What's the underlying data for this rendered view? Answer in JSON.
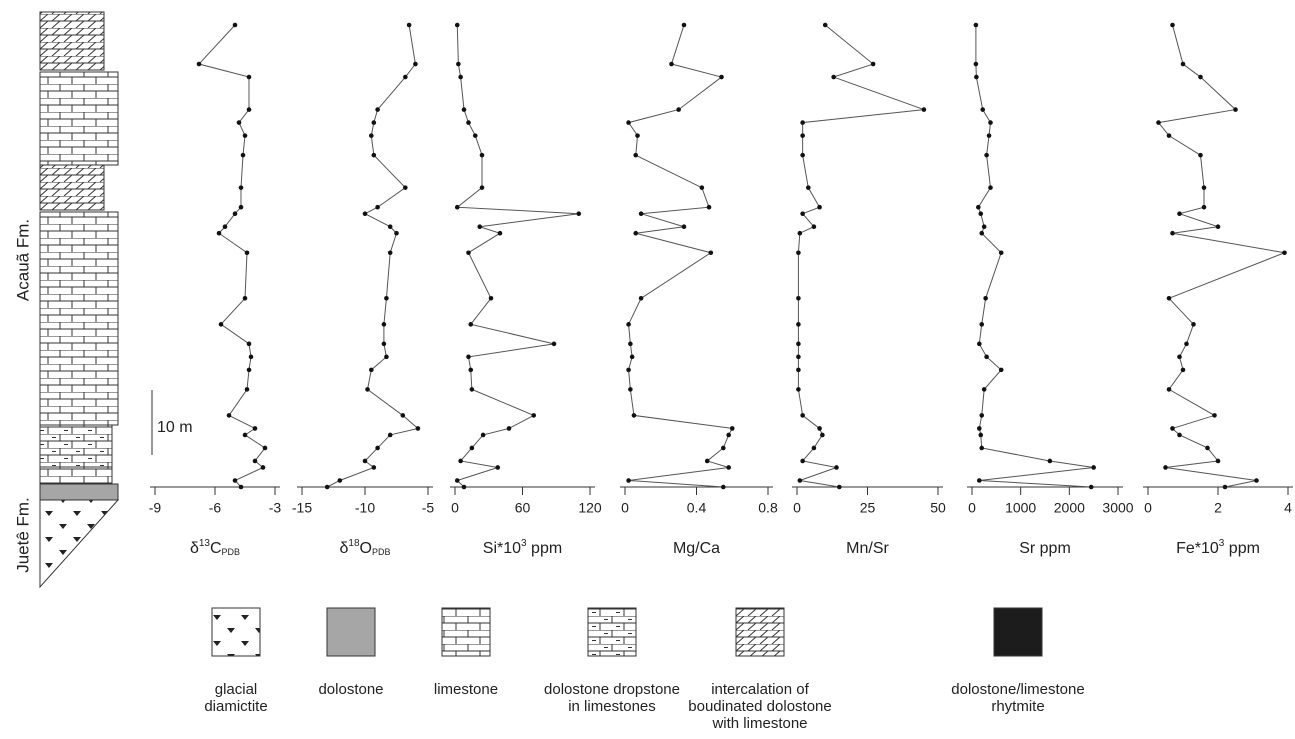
{
  "chart_data": [
    {
      "type": "line",
      "xlabel": [
        "δ",
        "13",
        "C",
        "PDB"
      ],
      "xlim": [
        -9,
        -3
      ],
      "xticks": [
        -9,
        -6,
        -3
      ],
      "ylim": [
        0,
        71
      ],
      "y": [
        71,
        65,
        63,
        58,
        56,
        54,
        51,
        46,
        43,
        42,
        40,
        39,
        36,
        29,
        25,
        22,
        20,
        18,
        15,
        11,
        9,
        8,
        6,
        4,
        3,
        1,
        0
      ],
      "values": [
        -5,
        -6.8,
        -4.3,
        -4.3,
        -4.8,
        -4.5,
        -4.6,
        -4.7,
        -4.7,
        -5.0,
        -5.5,
        -5.8,
        -4.4,
        -4.5,
        -5.7,
        -4.3,
        -4.2,
        -4.3,
        -4.4,
        -5.3,
        -4.0,
        -4.5,
        -3.5,
        -4.0,
        -3.6,
        -5.0,
        -4.7
      ]
    },
    {
      "type": "line",
      "xlabel": [
        "δ",
        "18",
        "O",
        "PDB"
      ],
      "xlim": [
        -15,
        -5
      ],
      "xticks": [
        -15,
        -10,
        -5
      ],
      "ylim": [
        0,
        71
      ],
      "y": [
        71,
        65,
        63,
        58,
        56,
        54,
        51,
        46,
        43,
        42,
        40,
        39,
        36,
        29,
        25,
        22,
        20,
        18,
        15,
        11,
        9,
        8,
        6,
        4,
        3,
        1,
        0
      ],
      "values": [
        -6.5,
        -6.0,
        -6.8,
        -9,
        -9.3,
        -9.5,
        -9.3,
        -6.8,
        -9.0,
        -10.0,
        -8.0,
        -7.5,
        -8.0,
        -8.3,
        -8.5,
        -8.5,
        -8.3,
        -9.5,
        -9.8,
        -7.0,
        -5.8,
        -8.0,
        -9.0,
        -10.0,
        -9.3,
        -12.0,
        -13.0
      ]
    },
    {
      "type": "line",
      "xlabel": [
        "Si*10",
        "3",
        " ppm"
      ],
      "xlim": [
        0,
        120
      ],
      "xticks": [
        0,
        60,
        120
      ],
      "ylim": [
        0,
        71
      ],
      "y": [
        71,
        65,
        63,
        58,
        56,
        54,
        51,
        46,
        43,
        42,
        40,
        39,
        36,
        29,
        25,
        22,
        20,
        18,
        15,
        11,
        9,
        8,
        6,
        4,
        3,
        1,
        0
      ],
      "values": [
        2,
        3,
        5,
        8,
        12,
        18,
        24,
        24,
        2,
        110,
        22,
        40,
        12,
        32,
        14,
        88,
        12,
        14,
        15,
        70,
        48,
        25,
        15,
        5,
        38,
        2,
        8
      ]
    },
    {
      "type": "line",
      "xlabel": [
        "Mg/Ca"
      ],
      "xlim": [
        0,
        0.8
      ],
      "xticks": [
        0,
        0.4,
        0.8
      ],
      "ylim": [
        0,
        71
      ],
      "y": [
        71,
        65,
        63,
        58,
        56,
        54,
        51,
        46,
        43,
        42,
        40,
        39,
        36,
        29,
        25,
        22,
        20,
        18,
        15,
        11,
        9,
        8,
        6,
        4,
        3,
        1,
        0
      ],
      "values": [
        0.33,
        0.26,
        0.54,
        0.3,
        0.02,
        0.07,
        0.06,
        0.43,
        0.47,
        0.09,
        0.33,
        0.06,
        0.48,
        0.09,
        0.02,
        0.03,
        0.04,
        0.02,
        0.03,
        0.05,
        0.6,
        0.58,
        0.55,
        0.46,
        0.58,
        0.02,
        0.55
      ]
    },
    {
      "type": "line",
      "xlabel": [
        "Mn/Sr"
      ],
      "xlim": [
        0,
        50
      ],
      "xticks": [
        0,
        25,
        50
      ],
      "ylim": [
        0,
        71
      ],
      "y": [
        71,
        65,
        63,
        58,
        56,
        54,
        51,
        46,
        43,
        42,
        40,
        39,
        36,
        29,
        25,
        22,
        20,
        18,
        15,
        11,
        9,
        8,
        6,
        4,
        3,
        1,
        0
      ],
      "values": [
        10,
        27,
        13,
        45,
        2,
        2,
        2,
        4,
        8,
        2,
        6,
        1,
        0.5,
        0.5,
        0.5,
        0.5,
        0.5,
        0.5,
        0.5,
        2,
        8,
        9,
        6,
        2,
        14,
        1,
        15
      ]
    },
    {
      "type": "line",
      "xlabel": [
        "Sr ppm"
      ],
      "xlim": [
        0,
        3000
      ],
      "xticks": [
        0,
        1000,
        2000,
        3000
      ],
      "ylim": [
        0,
        71
      ],
      "y": [
        71,
        65,
        63,
        58,
        56,
        54,
        51,
        46,
        43,
        42,
        40,
        39,
        36,
        29,
        25,
        22,
        20,
        18,
        15,
        11,
        9,
        8,
        6,
        4,
        3,
        1,
        0
      ],
      "values": [
        80,
        80,
        90,
        220,
        380,
        350,
        300,
        380,
        130,
        180,
        250,
        200,
        600,
        280,
        200,
        150,
        300,
        600,
        250,
        200,
        150,
        180,
        200,
        1600,
        2500,
        150,
        2450
      ]
    },
    {
      "type": "line",
      "xlabel": [
        "Fe*10",
        "3",
        " ppm"
      ],
      "xlim": [
        0,
        4
      ],
      "xticks": [
        0,
        2,
        4
      ],
      "ylim": [
        0,
        71
      ],
      "y": [
        71,
        65,
        63,
        58,
        56,
        54,
        51,
        46,
        43,
        42,
        40,
        39,
        36,
        29,
        25,
        22,
        20,
        18,
        15,
        11,
        9,
        8,
        6,
        4,
        3,
        1,
        0
      ],
      "values": [
        0.7,
        1.0,
        1.5,
        2.5,
        0.3,
        0.6,
        1.5,
        1.6,
        1.6,
        0.9,
        2.0,
        0.7,
        3.9,
        0.6,
        1.3,
        1.1,
        0.9,
        1.0,
        0.6,
        1.9,
        0.7,
        0.9,
        1.7,
        2.0,
        0.5,
        3.1,
        2.2
      ]
    }
  ],
  "column": {
    "formations": [
      "Acauã Fm.",
      "Juetê Fm."
    ],
    "scale_bar": "10 m"
  },
  "legend": [
    [
      "glacial",
      "diamictite"
    ],
    [
      "dolostone"
    ],
    [
      "limestone"
    ],
    [
      "dolostone dropstone",
      "in limestones"
    ],
    [
      "intercalation of",
      "boudinated dolostone",
      "with limestone"
    ],
    [
      "dolostone/limestone",
      "rhytmite"
    ]
  ]
}
